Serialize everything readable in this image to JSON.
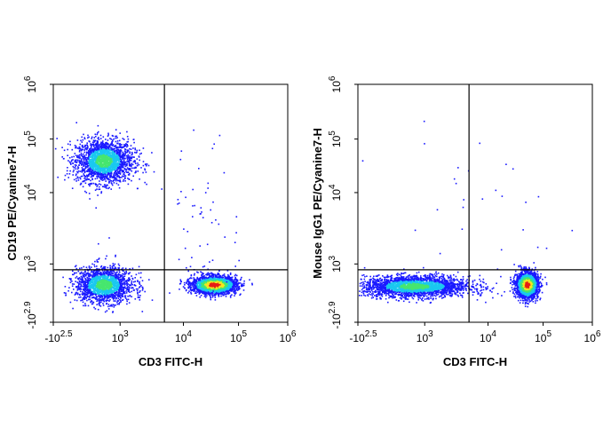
{
  "chart_data": [
    {
      "id": "left",
      "type": "scatter",
      "subtype": "flow-cytometry-density-plot",
      "title": "",
      "xlabel": "CD3 FITC-H",
      "ylabel": "CD19 PE/Cyanine7-H",
      "x_scale": "biexponential",
      "y_scale": "biexponential",
      "x_ticks": [
        {
          "label": "-10",
          "sup": "2.5"
        },
        {
          "label": "10",
          "sup": "3"
        },
        {
          "label": "10",
          "sup": "4"
        },
        {
          "label": "10",
          "sup": "5"
        },
        {
          "label": "10",
          "sup": "6"
        }
      ],
      "y_ticks": [
        {
          "label": "-10",
          "sup": "2.9"
        },
        {
          "label": "10",
          "sup": "3"
        },
        {
          "label": "10",
          "sup": "4"
        },
        {
          "label": "10",
          "sup": "5"
        },
        {
          "label": "10",
          "sup": "6"
        }
      ],
      "gate_x_decade": 3.7,
      "gate_y_decade": 2.8,
      "populations": [
        {
          "name": "CD19+ B cells",
          "x_decade": 2.7,
          "y_decade": 4.6,
          "spread_x": 0.25,
          "spread_y": 0.2,
          "density": "medium",
          "points": 2200
        },
        {
          "name": "double-negative",
          "x_decade": 2.7,
          "y_decade": 2.3,
          "spread_x": 0.25,
          "spread_y": 0.3,
          "density": "medium",
          "points": 1800
        },
        {
          "name": "CD3+ T cells",
          "x_decade": 4.55,
          "y_decade": 2.3,
          "spread_x": 0.2,
          "spread_y": 0.15,
          "density": "high",
          "points": 2400
        },
        {
          "name": "sparse events",
          "x_decade": 4.4,
          "y_decade": 3.6,
          "spread_x": 0.3,
          "spread_y": 0.7,
          "density": "low",
          "points": 60
        }
      ]
    },
    {
      "id": "right",
      "type": "scatter",
      "subtype": "flow-cytometry-density-plot",
      "title": "",
      "xlabel": "CD3 FITC-H",
      "ylabel": "Mouse IgG1 PE/Cyanine7-H",
      "x_scale": "biexponential",
      "y_scale": "biexponential",
      "x_ticks": [
        {
          "label": "-10",
          "sup": "2.5"
        },
        {
          "label": "10",
          "sup": "3"
        },
        {
          "label": "10",
          "sup": "4"
        },
        {
          "label": "10",
          "sup": "5"
        },
        {
          "label": "10",
          "sup": "6"
        }
      ],
      "y_ticks": [
        {
          "label": "-10",
          "sup": "2.9"
        },
        {
          "label": "10",
          "sup": "3"
        },
        {
          "label": "10",
          "sup": "4"
        },
        {
          "label": "10",
          "sup": "5"
        },
        {
          "label": "10",
          "sup": "6"
        }
      ],
      "gate_x_decade": 3.7,
      "gate_y_decade": 2.8,
      "populations": [
        {
          "name": "CD3- cells",
          "x_decade": 2.8,
          "y_decade": 2.25,
          "spread_x": 0.45,
          "spread_y": 0.18,
          "density": "medium",
          "points": 2600
        },
        {
          "name": "CD3+ T cells",
          "x_decade": 4.7,
          "y_decade": 2.3,
          "spread_x": 0.1,
          "spread_y": 0.22,
          "density": "high",
          "points": 2200
        },
        {
          "name": "sparse events",
          "x_decade": 3.8,
          "y_decade": 3.8,
          "spread_x": 0.8,
          "spread_y": 0.6,
          "density": "low",
          "points": 30
        }
      ]
    }
  ],
  "colors": {
    "density_low": "#1a1aff",
    "density_mid": "#19c8f0",
    "density_midhigh": "#46e66e",
    "density_high": "#f5e61e",
    "density_peak": "#e61e14",
    "axis": "#000000"
  }
}
